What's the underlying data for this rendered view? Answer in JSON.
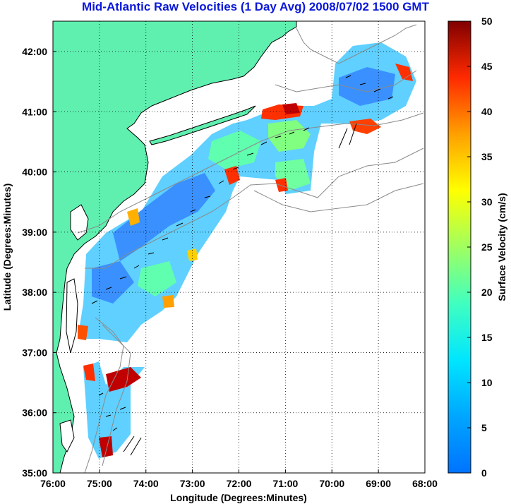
{
  "title": "Mid-Atlantic Raw Velocities (1 Day Avg) 2008/07/02 1500 GMT",
  "map": {
    "xlabel": "Longitude (Degrees:Minutes)",
    "ylabel": "Latitude (Degrees:Minutes)",
    "lon_ticks": [
      "76:00",
      "75:00",
      "74:00",
      "73:00",
      "72:00",
      "71:00",
      "70:00",
      "69:00",
      "68:00"
    ],
    "lat_ticks": [
      "42:00",
      "41:00",
      "40:00",
      "39:00",
      "38:00",
      "37:00",
      "36:00",
      "35:00"
    ],
    "land_color": "#5ff0b0",
    "grid": "dotted"
  },
  "colorbar": {
    "label": "Surface Velocity (cm/s)",
    "ticks": [
      "50",
      "45",
      "40",
      "35",
      "30",
      "25",
      "20",
      "15",
      "10",
      "5",
      "0"
    ],
    "range": [
      0,
      50
    ],
    "colormap": "jet"
  }
}
